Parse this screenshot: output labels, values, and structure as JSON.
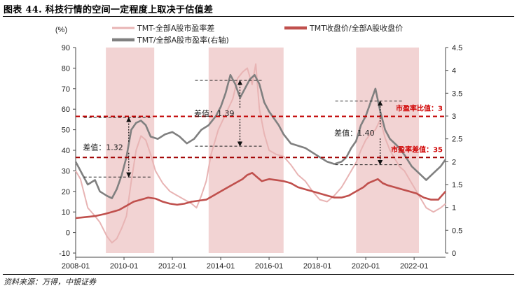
{
  "figure": {
    "title": "图表 44. 科技行情的空间一定程度上取决于估值差",
    "source": "资料来源：万得，中银证券"
  },
  "chart_data": {
    "type": "line",
    "y_unit_label": "(%)",
    "left_axis": {
      "min": -10,
      "max": 90,
      "ticks": [
        -10,
        0,
        10,
        20,
        30,
        40,
        50,
        60,
        70,
        80,
        90
      ]
    },
    "right_axis": {
      "min": 0,
      "max": 4.5,
      "ticks": [
        "0",
        "0.5",
        "1",
        "1.5",
        "2",
        "2.5",
        "3",
        "3.5",
        "4",
        "4.5"
      ]
    },
    "x_axis": {
      "min": 2008.0,
      "max": 2023.3,
      "tick_labels": [
        "2008-01",
        "2010-01",
        "2012-01",
        "2014-01",
        "2016-01",
        "2018-01",
        "2020-01",
        "2022-01"
      ]
    },
    "legend": [
      {
        "label": "TMT-全部A股市盈率差",
        "color": "#e8b4b4"
      },
      {
        "label": "TMT收盘价/全部A股收盘价",
        "color": "#c0504d"
      },
      {
        "label": "TMT/全部A股市盈率(右轴)",
        "color": "#808080"
      }
    ],
    "shaded_periods": [
      [
        2009.25,
        2011.25
      ],
      [
        2013.5,
        2016.6
      ],
      [
        2019.6,
        2022.2
      ]
    ],
    "series": [
      {
        "name": "TMT-全部A股市盈率差",
        "axis": "left",
        "color": "#e8b4b4",
        "x": [
          2008.0,
          2008.2,
          2008.5,
          2008.8,
          2009.0,
          2009.3,
          2009.5,
          2009.7,
          2009.9,
          2010.1,
          2010.3,
          2010.5,
          2010.7,
          2010.9,
          2011.1,
          2011.3,
          2011.6,
          2011.9,
          2012.2,
          2012.5,
          2012.8,
          2013.0,
          2013.2,
          2013.4,
          2013.6,
          2013.9,
          2014.1,
          2014.3,
          2014.5,
          2014.7,
          2014.9,
          2015.1,
          2015.3,
          2015.45,
          2015.6,
          2015.8,
          2016.0,
          2016.3,
          2016.6,
          2016.9,
          2017.2,
          2017.5,
          2017.8,
          2018.1,
          2018.4,
          2018.7,
          2019.0,
          2019.2,
          2019.4,
          2019.6,
          2019.8,
          2020.0,
          2020.2,
          2020.4,
          2020.6,
          2020.8,
          2021.0,
          2021.2,
          2021.4,
          2021.6,
          2021.8,
          2022.0,
          2022.2,
          2022.5,
          2022.8,
          2023.1,
          2023.3
        ],
        "y": [
          30,
          26,
          12,
          8,
          5,
          -2,
          -5,
          -3,
          2,
          8,
          25,
          40,
          47,
          45,
          38,
          30,
          24,
          20,
          18,
          16,
          14,
          12,
          18,
          25,
          38,
          50,
          55,
          60,
          65,
          75,
          78,
          80,
          72,
          82,
          60,
          48,
          40,
          38,
          37,
          33,
          28,
          25,
          20,
          16,
          15,
          18,
          22,
          26,
          30,
          34,
          40,
          45,
          48,
          50,
          55,
          46,
          40,
          36,
          32,
          30,
          26,
          22,
          18,
          12,
          10,
          12,
          14
        ]
      },
      {
        "name": "TMT收盘价/全部A股收盘价",
        "axis": "left",
        "color": "#c0504d",
        "x": [
          2008.0,
          2008.4,
          2008.8,
          2009.2,
          2009.5,
          2009.8,
          2010.1,
          2010.4,
          2010.7,
          2011.0,
          2011.3,
          2011.6,
          2011.9,
          2012.2,
          2012.5,
          2012.8,
          2013.1,
          2013.4,
          2013.7,
          2014.0,
          2014.3,
          2014.6,
          2014.9,
          2015.1,
          2015.3,
          2015.5,
          2015.7,
          2016.0,
          2016.3,
          2016.6,
          2016.9,
          2017.2,
          2017.5,
          2017.8,
          2018.1,
          2018.4,
          2018.7,
          2019.0,
          2019.3,
          2019.6,
          2019.9,
          2020.1,
          2020.3,
          2020.5,
          2020.7,
          2020.9,
          2021.2,
          2021.5,
          2021.8,
          2022.1,
          2022.4,
          2022.7,
          2023.0,
          2023.3
        ],
        "y": [
          7,
          7.5,
          8,
          9,
          10,
          11,
          13,
          15,
          16,
          17,
          16.5,
          15,
          14,
          13.5,
          14,
          15,
          15.5,
          16,
          18,
          20,
          22,
          24,
          26,
          28,
          29,
          27,
          25,
          26,
          25.5,
          25,
          24,
          22,
          21,
          20,
          19,
          18,
          17,
          17,
          18,
          20,
          22,
          24,
          25,
          26,
          24,
          23,
          22,
          21,
          20,
          19,
          17,
          16,
          16,
          20
        ]
      },
      {
        "name": "TMT/全部A股市盈率(右轴)",
        "axis": "right",
        "color": "#808080",
        "x": [
          2008.0,
          2008.2,
          2008.5,
          2008.8,
          2009.0,
          2009.3,
          2009.5,
          2009.7,
          2009.9,
          2010.1,
          2010.3,
          2010.5,
          2010.7,
          2010.9,
          2011.1,
          2011.4,
          2011.7,
          2012.0,
          2012.3,
          2012.6,
          2012.9,
          2013.2,
          2013.5,
          2013.8,
          2014.0,
          2014.2,
          2014.4,
          2014.6,
          2014.8,
          2015.0,
          2015.2,
          2015.4,
          2015.6,
          2015.8,
          2016.0,
          2016.2,
          2016.4,
          2016.6,
          2016.9,
          2017.2,
          2017.5,
          2017.8,
          2018.1,
          2018.4,
          2018.7,
          2019.0,
          2019.2,
          2019.4,
          2019.6,
          2019.8,
          2020.0,
          2020.2,
          2020.4,
          2020.6,
          2020.8,
          2021.0,
          2021.3,
          2021.6,
          2021.9,
          2022.2,
          2022.5,
          2022.8,
          2023.1,
          2023.3
        ],
        "y": [
          2.0,
          1.8,
          1.5,
          1.6,
          1.35,
          1.25,
          1.2,
          1.4,
          1.7,
          2.1,
          2.7,
          2.85,
          2.9,
          2.8,
          2.55,
          2.5,
          2.6,
          2.65,
          2.55,
          2.4,
          2.5,
          2.7,
          2.8,
          3.0,
          3.2,
          3.5,
          3.9,
          3.7,
          3.4,
          3.6,
          3.8,
          3.9,
          3.7,
          3.3,
          3.1,
          2.95,
          2.8,
          2.6,
          2.4,
          2.35,
          2.3,
          2.2,
          2.1,
          2.0,
          1.95,
          2.0,
          2.1,
          2.3,
          2.45,
          2.8,
          3.0,
          3.3,
          3.6,
          3.1,
          2.7,
          2.5,
          2.35,
          2.15,
          1.9,
          1.75,
          1.6,
          1.75,
          1.9,
          2.05
        ]
      }
    ],
    "reference_lines": [
      {
        "axis": "left",
        "y": 56.5,
        "color": "#c00000",
        "label": "市盈率比值：3"
      },
      {
        "axis": "left",
        "y": 36.5,
        "color": "#a00000",
        "label": "市盈率差值：35"
      }
    ],
    "annotations": [
      {
        "label": "差值：1.32",
        "x": 2009.5,
        "y_top": 56,
        "y_bottom": 27
      },
      {
        "label": "差值：1.39",
        "x": 2014.1,
        "y_top": 74,
        "y_bottom": 42
      },
      {
        "label": "差值：1.40",
        "x": 2019.9,
        "y_top": 64,
        "y_bottom": 33
      }
    ]
  }
}
